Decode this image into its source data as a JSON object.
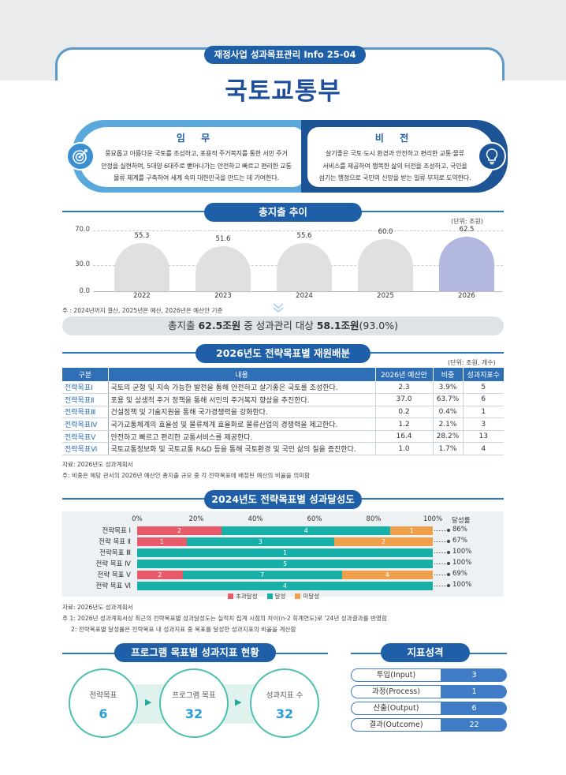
{
  "header": {
    "tag": "재정사업 성과목표관리 Info 25-04",
    "title": "국토교통부"
  },
  "mission": {
    "title": "임 무",
    "lines": [
      "풍요롭고 아름다운 국토를 조성하고, 포용적 주거복지를 통한 서민 주거",
      "안정을 실현하며, 5대양 6대주로 뻗어나가는 안전하고 빠르고 편리한 교통",
      "물류 체계를 구축하여 세계 속의 대한민국을 만드는 데 기여한다."
    ]
  },
  "vision": {
    "title": "비 전",
    "lines": [
      "살기좋은 국토·도시 환경과 안전하고 편리한 교통·물류",
      "서비스를 제공하여 행복한 삶의 터전을 조성하고, 국민을",
      "섬기는 행정으로 국민의 신망을 받는 일류 부처로 도약한다."
    ]
  },
  "spending": {
    "title": "총지출 추이",
    "unit": "(단위: 조원)",
    "note": "주 : 2024년까지 결산, 2025년은 예산, 2026년은 예산안 기준",
    "summary": {
      "prefix": "총지출 ",
      "total": "62.5조원",
      "middle": " 중 성과관리 대상 ",
      "target": "58.1조원",
      "suffix": "(93.0%)"
    }
  },
  "chart_data": {
    "type": "bar",
    "categories": [
      "2022",
      "2023",
      "2024",
      "2025",
      "2026"
    ],
    "values": [
      55.3,
      51.6,
      55.6,
      60.0,
      62.5
    ],
    "value_labels": [
      "55.3",
      "51.6",
      "55.6",
      "60.0",
      "62.5"
    ],
    "yticks": [
      "70.0",
      "30.0",
      "0.0"
    ],
    "ylim": [
      0,
      70
    ],
    "highlight_color": "#b3b8e0",
    "bar_color": "#e0e0e0"
  },
  "realloc": {
    "title": "2026년도 전략목표별 재원배분",
    "unit": "(단위: 조원, 개수)",
    "headers": [
      "구분",
      "내용",
      "2026년 예산안",
      "비중",
      "성과지표수"
    ],
    "rows": [
      [
        "전략목표Ⅰ",
        "국토의 균형 및 지속 가능한 발전을 통해 안전하고 살기좋은 국토를 조성한다.",
        "2.3",
        "3.9%",
        "5"
      ],
      [
        "전략목표Ⅱ",
        "포용 및 상생적 주거 정책을 통해 서민의 주거복지 향상을 추진한다.",
        "37.0",
        "63.7%",
        "6"
      ],
      [
        "전략목표Ⅲ",
        "건설정책 및 기술지원을 통해 국가경쟁력을 강화한다.",
        "0.2",
        "0.4%",
        "1"
      ],
      [
        "전략목표Ⅳ",
        "국가교통체계의 효율성 및 물류체계 효율화로 물류산업의 경쟁력을 제고한다.",
        "1.2",
        "2.1%",
        "3"
      ],
      [
        "전략목표Ⅴ",
        "안전하고 빠르고 편리한 교통서비스를 제공한다.",
        "16.4",
        "28.2%",
        "13"
      ],
      [
        "전략목표Ⅵ",
        "국토교통정보화 및 국토교통 R&D 등을 통해 국토환경 및 국민 삶의 질을 증진한다.",
        "1.0",
        "1.7%",
        "4"
      ]
    ],
    "source": "자료: 2026년도 성과계획서",
    "note": "주: 비중은 해당 관서의 2026년 예산안 총지출 규모 중 각 전략목표에 배정된 예산의 비율을 의미함"
  },
  "achievement": {
    "title": "2024년도 전략목표별 성과달성도",
    "axis": [
      "0%",
      "20%",
      "40%",
      "60%",
      "80%",
      "100%"
    ],
    "rate_header": "달성률",
    "rows": [
      {
        "label": "전략목표 Ⅰ",
        "exceed": 2,
        "achieve": 4,
        "miss": 1,
        "rate": "86%"
      },
      {
        "label": "전략 목표 Ⅱ",
        "exceed": 1,
        "achieve": 3,
        "miss": 2,
        "rate": "67%"
      },
      {
        "label": "전략목표 Ⅲ",
        "exceed": 0,
        "achieve": 1,
        "miss": 0,
        "rate": "100%"
      },
      {
        "label": "전략 목표 Ⅳ",
        "exceed": 0,
        "achieve": 5,
        "miss": 0,
        "rate": "100%"
      },
      {
        "label": "전략 목표 Ⅴ",
        "exceed": 2,
        "achieve": 7,
        "miss": 4,
        "rate": "69%"
      },
      {
        "label": "전략 목표 Ⅵ",
        "exceed": 0,
        "achieve": 4,
        "miss": 0,
        "rate": "100%"
      }
    ],
    "legend": [
      "초과달성",
      "달성",
      "미달성"
    ],
    "colors": {
      "exceed": "#e85a6a",
      "achieve": "#16b0a8",
      "miss": "#f0a04a"
    },
    "source": "자료: 2026년도 성과계획서",
    "note1": "주 1: 2026년 성과계획서상 최근의 전략목표별 성과달성도는 실적치 집계 시점의 차이(n-2 회계연도)로 '24년 성과결과를 반영함",
    "note2": "2: 전략목표별 달성률은 전략목표 내 성과지표 중 목표를 달성한 성과지표의 비율을 계산함"
  },
  "program": {
    "title": "프로그램 목표별 성과지표 현황",
    "items": [
      {
        "label": "전략목표",
        "value": "6"
      },
      {
        "label": "프로그램 목표",
        "value": "32"
      },
      {
        "label": "성과지표 수",
        "value": "32"
      }
    ]
  },
  "kpi": {
    "title": "지표성격",
    "items": [
      {
        "label": "투입(Input)",
        "value": "3"
      },
      {
        "label": "과정(Process)",
        "value": "1"
      },
      {
        "label": "산출(Output)",
        "value": "6"
      },
      {
        "label": "결과(Outcome)",
        "value": "22"
      }
    ]
  }
}
